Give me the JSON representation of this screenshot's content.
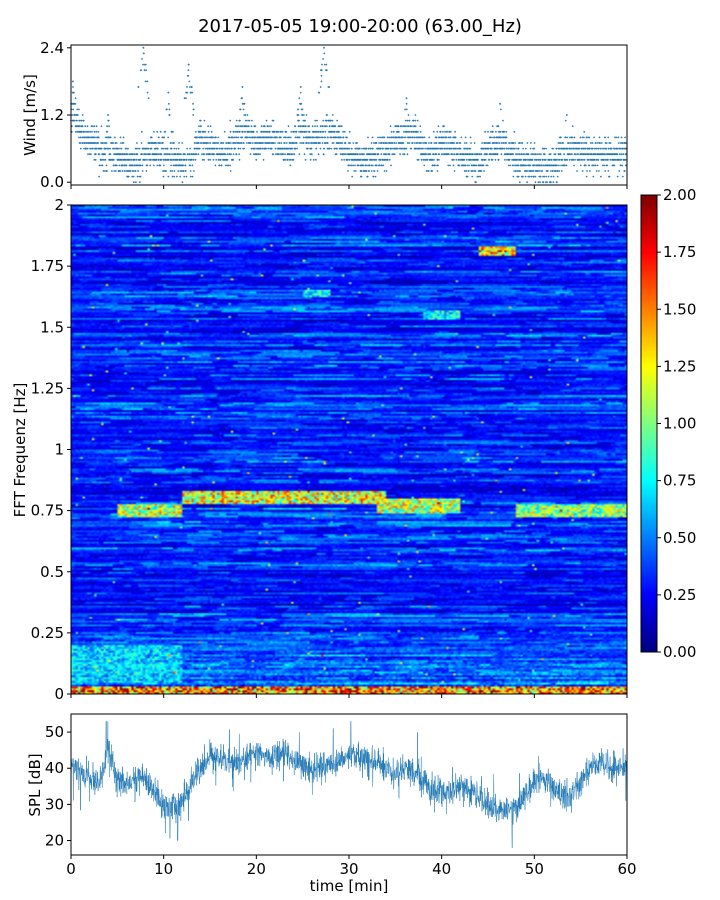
{
  "figure": {
    "title": "2017-05-05 19:00-20:00 (63.00_Hz)"
  },
  "chart_data": [
    {
      "type": "scatter",
      "panel": "wind",
      "title": "",
      "xlabel": "",
      "ylabel": "Wind [m/s]",
      "xlim": [
        0,
        60
      ],
      "ylim": [
        -0.05,
        2.45
      ],
      "yticks": [
        "0.0",
        "1.2",
        "2.4"
      ],
      "ytick_values": [
        0.0,
        1.2,
        2.4
      ],
      "marker_color": "#1f77b4",
      "sample_interval_s": 1,
      "wind_quantum_mps": 0.1,
      "levels_by_minute": [
        1.3,
        0.9,
        0.7,
        0.6,
        0.5,
        0.5,
        0.4,
        0.3,
        0.5,
        0.6,
        0.5,
        0.4,
        0.3,
        0.4,
        0.8,
        0.7,
        0.5,
        0.6,
        0.8,
        0.9,
        0.7,
        0.8,
        0.8,
        0.6,
        0.7,
        0.9,
        0.7,
        0.8,
        0.9,
        0.8,
        0.5,
        0.4,
        0.4,
        0.5,
        0.6,
        0.8,
        0.7,
        0.9,
        0.6,
        0.5,
        0.7,
        0.6,
        0.5,
        0.4,
        0.3,
        0.6,
        0.7,
        0.6,
        0.4,
        0.4,
        0.3,
        0.3,
        0.3,
        0.5,
        0.6,
        0.5,
        0.5,
        0.5,
        0.5,
        0.5
      ],
      "peaks": [
        {
          "t": 0.2,
          "v": 1.8
        },
        {
          "t": 4.0,
          "v": 1.2
        },
        {
          "t": 7.8,
          "v": 2.4
        },
        {
          "t": 10.5,
          "v": 1.6
        },
        {
          "t": 12.7,
          "v": 2.1
        },
        {
          "t": 18.5,
          "v": 1.7
        },
        {
          "t": 24.8,
          "v": 1.7
        },
        {
          "t": 27.3,
          "v": 2.4
        },
        {
          "t": 36.2,
          "v": 1.5
        },
        {
          "t": 46.3,
          "v": 1.4
        },
        {
          "t": 53.5,
          "v": 1.2
        }
      ]
    },
    {
      "type": "heatmap",
      "panel": "spectrogram",
      "title": "",
      "xlabel": "",
      "ylabel": "FFT Frequenz [Hz]",
      "xlim": [
        0,
        60
      ],
      "ylim": [
        0,
        2
      ],
      "yticks": [
        "0",
        "0.25",
        "0.5",
        "0.75",
        "1",
        "1.25",
        "1.5",
        "1.75",
        "2"
      ],
      "ytick_values": [
        0,
        0.25,
        0.5,
        0.75,
        1,
        1.25,
        1.5,
        1.75,
        2
      ],
      "colormap": "jet",
      "value_range": [
        0,
        2
      ],
      "colorbar_ticks": [
        "0.00",
        "0.25",
        "0.50",
        "0.75",
        "1.00",
        "1.25",
        "1.50",
        "1.75",
        "2.00"
      ],
      "colorbar_tick_values": [
        0,
        0.25,
        0.5,
        0.75,
        1,
        1.25,
        1.5,
        1.75,
        2
      ],
      "background_level": 0.28,
      "features": [
        {
          "kind": "band",
          "t": [
            5,
            12
          ],
          "f": [
            0.72,
            0.78
          ],
          "value": 1.2
        },
        {
          "kind": "band",
          "t": [
            12,
            34
          ],
          "f": [
            0.78,
            0.83
          ],
          "value": 1.3
        },
        {
          "kind": "band",
          "t": [
            33,
            42
          ],
          "f": [
            0.74,
            0.8
          ],
          "value": 1.2
        },
        {
          "kind": "band",
          "t": [
            48,
            60
          ],
          "f": [
            0.72,
            0.78
          ],
          "value": 1.1
        },
        {
          "kind": "band",
          "t": [
            0,
            60
          ],
          "f": [
            0.0,
            0.03
          ],
          "value": 1.6
        },
        {
          "kind": "band",
          "t": [
            0,
            12
          ],
          "f": [
            0.05,
            0.2
          ],
          "value": 0.7
        },
        {
          "kind": "band",
          "t": [
            44,
            48
          ],
          "f": [
            1.79,
            1.83
          ],
          "value": 1.5
        },
        {
          "kind": "band",
          "t": [
            25,
            28
          ],
          "f": [
            1.62,
            1.65
          ],
          "value": 0.8
        },
        {
          "kind": "band",
          "t": [
            38,
            42
          ],
          "f": [
            1.53,
            1.57
          ],
          "value": 0.8
        }
      ]
    },
    {
      "type": "line",
      "panel": "spl",
      "title": "",
      "xlabel": "time [min]",
      "ylabel": "SPL [dB]",
      "xlim": [
        0,
        60
      ],
      "ylim": [
        16,
        55
      ],
      "xticks": [
        "0",
        "10",
        "20",
        "30",
        "40",
        "50",
        "60"
      ],
      "xtick_values": [
        0,
        10,
        20,
        30,
        40,
        50,
        60
      ],
      "yticks": [
        "20",
        "30",
        "40",
        "50"
      ],
      "ytick_values": [
        20,
        30,
        40,
        50
      ],
      "line_color": "#1f77b4",
      "mean_by_minute": [
        40,
        39,
        37,
        36,
        45,
        37,
        35,
        38,
        37,
        33,
        30,
        29,
        31,
        36,
        40,
        43,
        43,
        42,
        42,
        43,
        44,
        43,
        43,
        44,
        42,
        41,
        40,
        41,
        41,
        42,
        44,
        43,
        42,
        42,
        40,
        38,
        40,
        40,
        36,
        34,
        34,
        34,
        35,
        34,
        32,
        30,
        29,
        28,
        29,
        32,
        36,
        37,
        36,
        32,
        33,
        36,
        40,
        42,
        41,
        40,
        40
      ],
      "spread_db": 5,
      "extremes": [
        {
          "t": 3.8,
          "v": 53
        },
        {
          "t": 30.2,
          "v": 53
        },
        {
          "t": 11.5,
          "v": 20
        },
        {
          "t": 47.6,
          "v": 18
        },
        {
          "t": 28.3,
          "v": 51
        }
      ]
    }
  ]
}
